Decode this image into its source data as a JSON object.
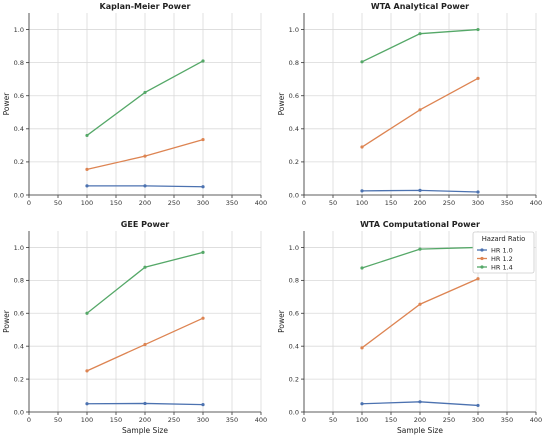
{
  "chart_data": [
    {
      "type": "line",
      "title": "Kaplan-Meier Power",
      "xlabel": "",
      "ylabel": "Power",
      "x": [
        100,
        200,
        300
      ],
      "xlim": [
        0,
        400
      ],
      "ylim": [
        0,
        1.1
      ],
      "xticks": [
        "0",
        "50",
        "100",
        "150",
        "200",
        "250",
        "300",
        "350",
        "400"
      ],
      "yticks": [
        "0.0",
        "0.2",
        "0.4",
        "0.6",
        "0.8",
        "1.0"
      ],
      "grid": true,
      "series": [
        {
          "name": "HR 1.0",
          "color": "#4c72b0",
          "values": [
            0.055,
            0.055,
            0.05
          ]
        },
        {
          "name": "HR 1.2",
          "color": "#dd8452",
          "values": [
            0.155,
            0.235,
            0.335
          ]
        },
        {
          "name": "HR 1.4",
          "color": "#55a868",
          "values": [
            0.36,
            0.62,
            0.81
          ]
        }
      ]
    },
    {
      "type": "line",
      "title": "WTA Analytical Power",
      "xlabel": "",
      "ylabel": "Power",
      "x": [
        100,
        200,
        300
      ],
      "xlim": [
        0,
        400
      ],
      "ylim": [
        0,
        1.1
      ],
      "xticks": [
        "0",
        "50",
        "100",
        "150",
        "200",
        "250",
        "300",
        "350",
        "400"
      ],
      "yticks": [
        "0.0",
        "0.2",
        "0.4",
        "0.6",
        "0.8",
        "1.0"
      ],
      "grid": true,
      "series": [
        {
          "name": "HR 1.0",
          "color": "#4c72b0",
          "values": [
            0.025,
            0.028,
            0.018
          ]
        },
        {
          "name": "HR 1.2",
          "color": "#dd8452",
          "values": [
            0.29,
            0.515,
            0.705
          ]
        },
        {
          "name": "HR 1.4",
          "color": "#55a868",
          "values": [
            0.805,
            0.975,
            1.0
          ]
        }
      ]
    },
    {
      "type": "line",
      "title": "GEE Power",
      "xlabel": "Sample Size",
      "ylabel": "Power",
      "x": [
        100,
        200,
        300
      ],
      "xlim": [
        0,
        400
      ],
      "ylim": [
        0,
        1.1
      ],
      "xticks": [
        "0",
        "50",
        "100",
        "150",
        "200",
        "250",
        "300",
        "350",
        "400"
      ],
      "yticks": [
        "0.0",
        "0.2",
        "0.4",
        "0.6",
        "0.8",
        "1.0"
      ],
      "grid": true,
      "series": [
        {
          "name": "HR 1.0",
          "color": "#4c72b0",
          "values": [
            0.05,
            0.052,
            0.045
          ]
        },
        {
          "name": "HR 1.2",
          "color": "#dd8452",
          "values": [
            0.25,
            0.41,
            0.57
          ]
        },
        {
          "name": "HR 1.4",
          "color": "#55a868",
          "values": [
            0.6,
            0.88,
            0.97
          ]
        }
      ]
    },
    {
      "type": "line",
      "title": "WTA Computational Power",
      "xlabel": "Sample Size",
      "ylabel": "Power",
      "x": [
        100,
        200,
        300
      ],
      "xlim": [
        0,
        400
      ],
      "ylim": [
        0,
        1.1
      ],
      "xticks": [
        "0",
        "50",
        "100",
        "150",
        "200",
        "250",
        "300",
        "350",
        "400"
      ],
      "yticks": [
        "0.0",
        "0.2",
        "0.4",
        "0.6",
        "0.8",
        "1.0"
      ],
      "grid": true,
      "legend": {
        "title": "Hazard Ratio",
        "position": "top-right",
        "entries": [
          "HR 1.0",
          "HR 1.2",
          "HR 1.4"
        ]
      },
      "series": [
        {
          "name": "HR 1.0",
          "color": "#4c72b0",
          "values": [
            0.05,
            0.062,
            0.04
          ]
        },
        {
          "name": "HR 1.2",
          "color": "#dd8452",
          "values": [
            0.39,
            0.655,
            0.81
          ]
        },
        {
          "name": "HR 1.4",
          "color": "#55a868",
          "values": [
            0.875,
            0.99,
            1.0
          ]
        }
      ]
    }
  ]
}
